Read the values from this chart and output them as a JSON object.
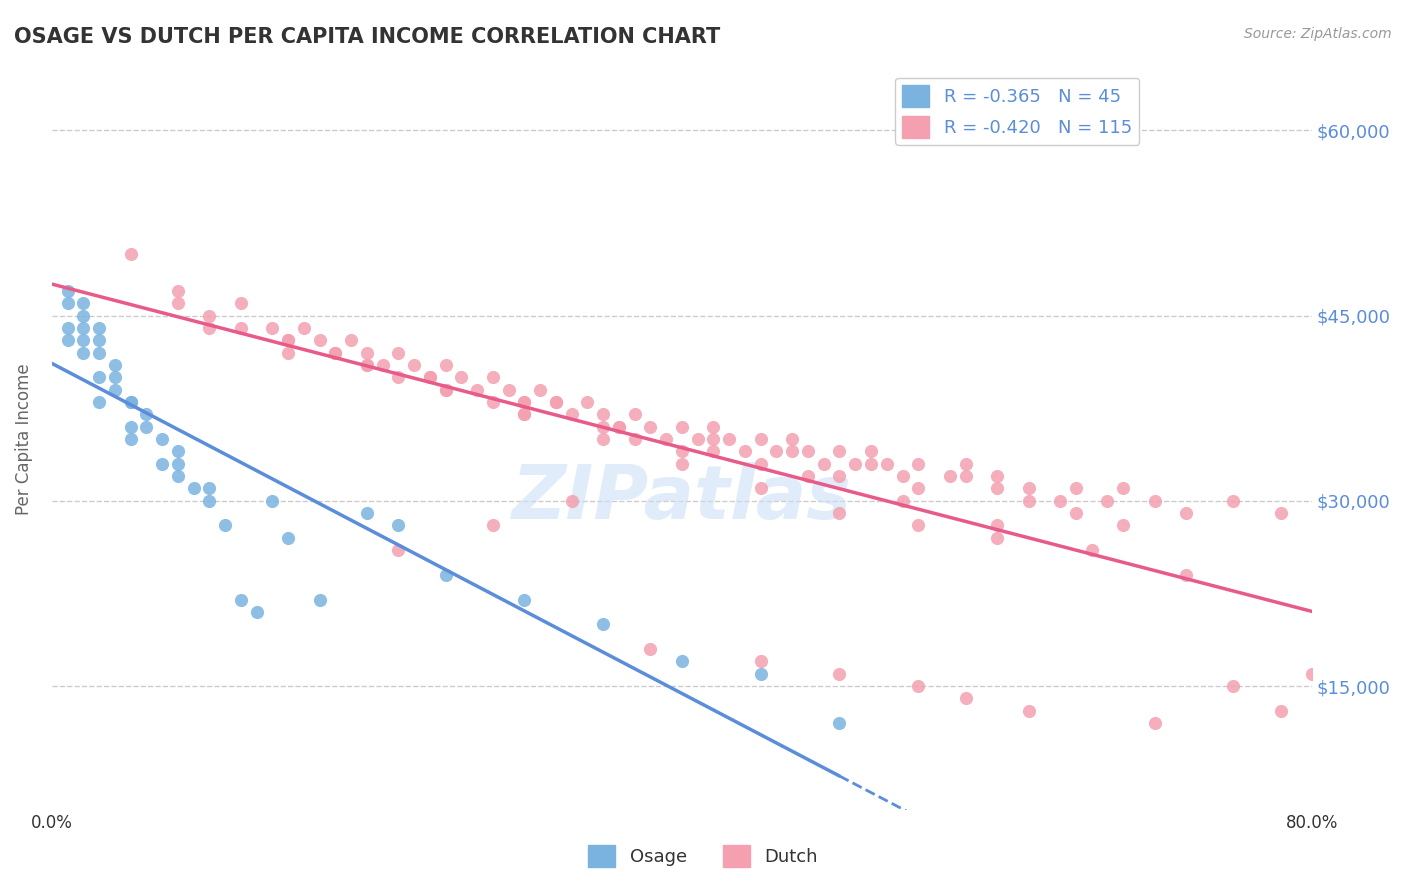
{
  "title": "OSAGE VS DUTCH PER CAPITA INCOME CORRELATION CHART",
  "source_text": "Source: ZipAtlas.com",
  "ylabel": "Per Capita Income",
  "xlim": [
    0.0,
    0.8
  ],
  "ylim": [
    5000,
    65000
  ],
  "yticks": [
    15000,
    30000,
    45000,
    60000
  ],
  "ytick_labels": [
    "$15,000",
    "$30,000",
    "$45,000",
    "$60,000"
  ],
  "xtick_labels": [
    "0.0%",
    "80.0%"
  ],
  "osage_color": "#7ab3e0",
  "dutch_color": "#f4a0b0",
  "osage_R": -0.365,
  "osage_N": 45,
  "dutch_R": -0.42,
  "dutch_N": 115,
  "watermark": "ZIPatlas",
  "background_color": "#ffffff",
  "grid_color": "#cccccc",
  "title_color": "#333333",
  "label_color": "#5b8dd9",
  "trend_blue": "#5b8dd9",
  "trend_pink": "#e85a8a",
  "osage_scatter_x": [
    0.01,
    0.01,
    0.01,
    0.02,
    0.02,
    0.02,
    0.02,
    0.03,
    0.03,
    0.03,
    0.03,
    0.04,
    0.04,
    0.05,
    0.05,
    0.05,
    0.06,
    0.07,
    0.07,
    0.08,
    0.08,
    0.09,
    0.1,
    0.11,
    0.12,
    0.14,
    0.15,
    0.17,
    0.2,
    0.22,
    0.25,
    0.3,
    0.35,
    0.4,
    0.45,
    0.5,
    0.01,
    0.02,
    0.03,
    0.04,
    0.05,
    0.06,
    0.08,
    0.1,
    0.13
  ],
  "osage_scatter_y": [
    46000,
    44000,
    43000,
    45000,
    44000,
    43000,
    42000,
    43000,
    42000,
    40000,
    38000,
    41000,
    39000,
    38000,
    36000,
    35000,
    37000,
    35000,
    33000,
    34000,
    32000,
    31000,
    30000,
    28000,
    22000,
    30000,
    27000,
    22000,
    29000,
    28000,
    24000,
    22000,
    20000,
    17000,
    16000,
    12000,
    47000,
    46000,
    44000,
    40000,
    38000,
    36000,
    33000,
    31000,
    21000
  ],
  "dutch_scatter_x": [
    0.05,
    0.08,
    0.1,
    0.12,
    0.14,
    0.15,
    0.16,
    0.17,
    0.18,
    0.19,
    0.2,
    0.21,
    0.22,
    0.23,
    0.24,
    0.25,
    0.26,
    0.27,
    0.28,
    0.29,
    0.3,
    0.31,
    0.32,
    0.33,
    0.34,
    0.35,
    0.36,
    0.37,
    0.38,
    0.39,
    0.4,
    0.41,
    0.42,
    0.43,
    0.44,
    0.45,
    0.46,
    0.47,
    0.48,
    0.49,
    0.5,
    0.51,
    0.52,
    0.53,
    0.54,
    0.55,
    0.57,
    0.58,
    0.6,
    0.62,
    0.64,
    0.65,
    0.67,
    0.68,
    0.7,
    0.72,
    0.75,
    0.78,
    0.1,
    0.15,
    0.2,
    0.22,
    0.25,
    0.28,
    0.3,
    0.32,
    0.35,
    0.37,
    0.4,
    0.42,
    0.45,
    0.47,
    0.5,
    0.52,
    0.55,
    0.58,
    0.6,
    0.62,
    0.65,
    0.68,
    0.15,
    0.2,
    0.25,
    0.3,
    0.35,
    0.4,
    0.45,
    0.5,
    0.55,
    0.6,
    0.08,
    0.12,
    0.18,
    0.24,
    0.3,
    0.36,
    0.42,
    0.48,
    0.54,
    0.6,
    0.66,
    0.72,
    0.58,
    0.7,
    0.75,
    0.78,
    0.8,
    0.62,
    0.55,
    0.5,
    0.45,
    0.38,
    0.33,
    0.28,
    0.22
  ],
  "dutch_scatter_y": [
    50000,
    47000,
    45000,
    46000,
    44000,
    43000,
    44000,
    43000,
    42000,
    43000,
    42000,
    41000,
    42000,
    41000,
    40000,
    41000,
    40000,
    39000,
    40000,
    39000,
    38000,
    39000,
    38000,
    37000,
    38000,
    37000,
    36000,
    37000,
    36000,
    35000,
    36000,
    35000,
    36000,
    35000,
    34000,
    35000,
    34000,
    35000,
    34000,
    33000,
    34000,
    33000,
    34000,
    33000,
    32000,
    33000,
    32000,
    33000,
    32000,
    31000,
    30000,
    31000,
    30000,
    31000,
    30000,
    29000,
    30000,
    29000,
    44000,
    42000,
    41000,
    40000,
    39000,
    38000,
    37000,
    38000,
    36000,
    35000,
    34000,
    35000,
    33000,
    34000,
    32000,
    33000,
    31000,
    32000,
    31000,
    30000,
    29000,
    28000,
    43000,
    41000,
    39000,
    37000,
    35000,
    33000,
    31000,
    29000,
    28000,
    27000,
    46000,
    44000,
    42000,
    40000,
    38000,
    36000,
    34000,
    32000,
    30000,
    28000,
    26000,
    24000,
    14000,
    12000,
    15000,
    13000,
    16000,
    13000,
    15000,
    16000,
    17000,
    18000,
    30000,
    28000,
    26000
  ]
}
